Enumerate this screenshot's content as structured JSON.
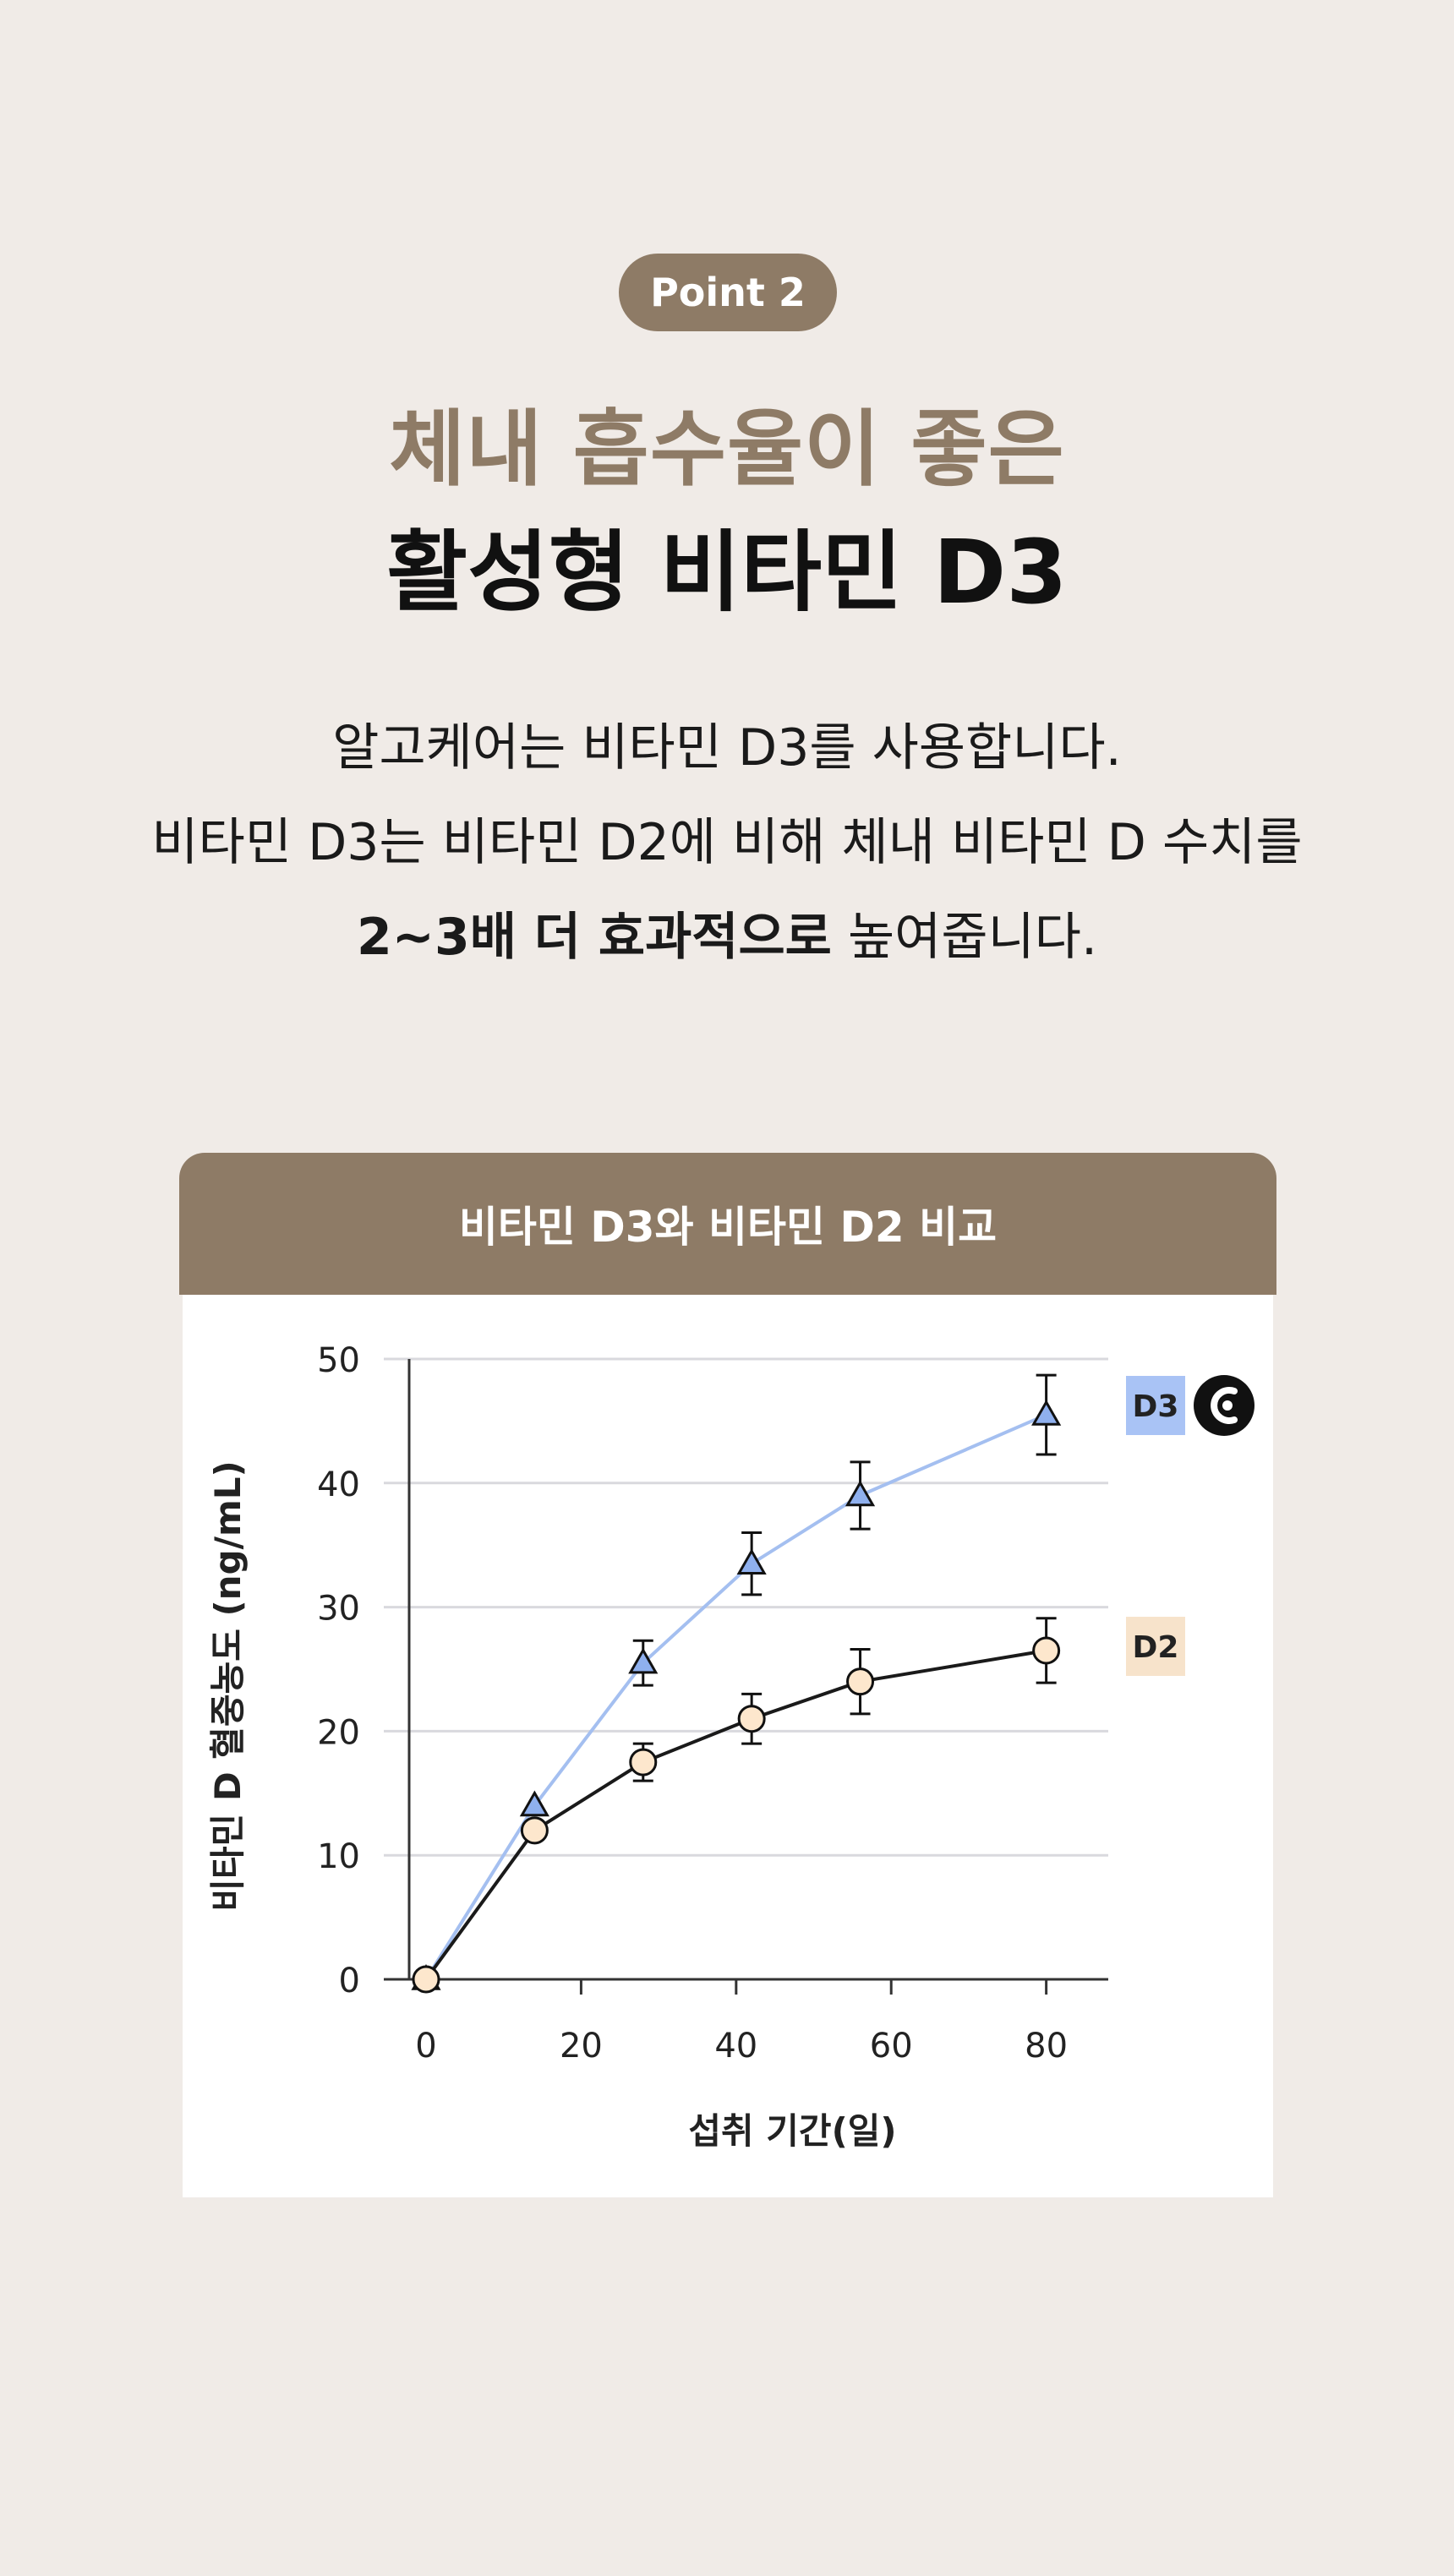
{
  "point_badge": "Point 2",
  "headline": {
    "line1": "체내 흡수율이 좋은",
    "line2": "활성형 비타민 D3"
  },
  "description": {
    "line1": "알고케어는 비타민 D3를 사용합니다.",
    "line2": "비타민 D3는 비타민 D2에 비해 체내 비타민 D 수치를",
    "line3_bold": "2~3배 더 효과적으로",
    "line3_rest": " 높여줍니다."
  },
  "colors": {
    "brand": "#8e7b66",
    "background": "#f0ebe7",
    "d3_line": "#a4bff0",
    "d3_marker": "#8fb0ee",
    "d2_line": "#1a1a1a",
    "d2_marker": "#fde7cd",
    "d3_badge": "#a9c3f5",
    "d2_badge": "#f7e3cb"
  },
  "chart_data": {
    "type": "line",
    "title": "비타민 D3와 비타민 D2 비교",
    "xlabel": "섭취 기간(일)",
    "ylabel": "비타민 D 혈중농도 (ng/mL)",
    "xlim": [
      0,
      88
    ],
    "ylim": [
      0,
      50
    ],
    "xticks": [
      "0",
      "20",
      "40",
      "60",
      "80"
    ],
    "yticks": [
      "0",
      "10",
      "20",
      "30",
      "40",
      "50"
    ],
    "grid": true,
    "legend": "right",
    "brand_icon": "algocare-logo-icon",
    "series": [
      {
        "name": "D3",
        "marker": "triangle",
        "x": [
          0,
          14,
          28,
          42,
          56,
          80
        ],
        "y": [
          0,
          14,
          25.5,
          33.5,
          39,
          45.5
        ],
        "error": [
          0,
          0,
          1.8,
          2.5,
          2.7,
          3.2
        ]
      },
      {
        "name": "D2",
        "marker": "circle",
        "x": [
          0,
          14,
          28,
          42,
          56,
          80
        ],
        "y": [
          0,
          12,
          17.5,
          21,
          24,
          26.5
        ],
        "error": [
          0,
          0,
          1.5,
          2.0,
          2.6,
          2.6
        ]
      }
    ]
  }
}
